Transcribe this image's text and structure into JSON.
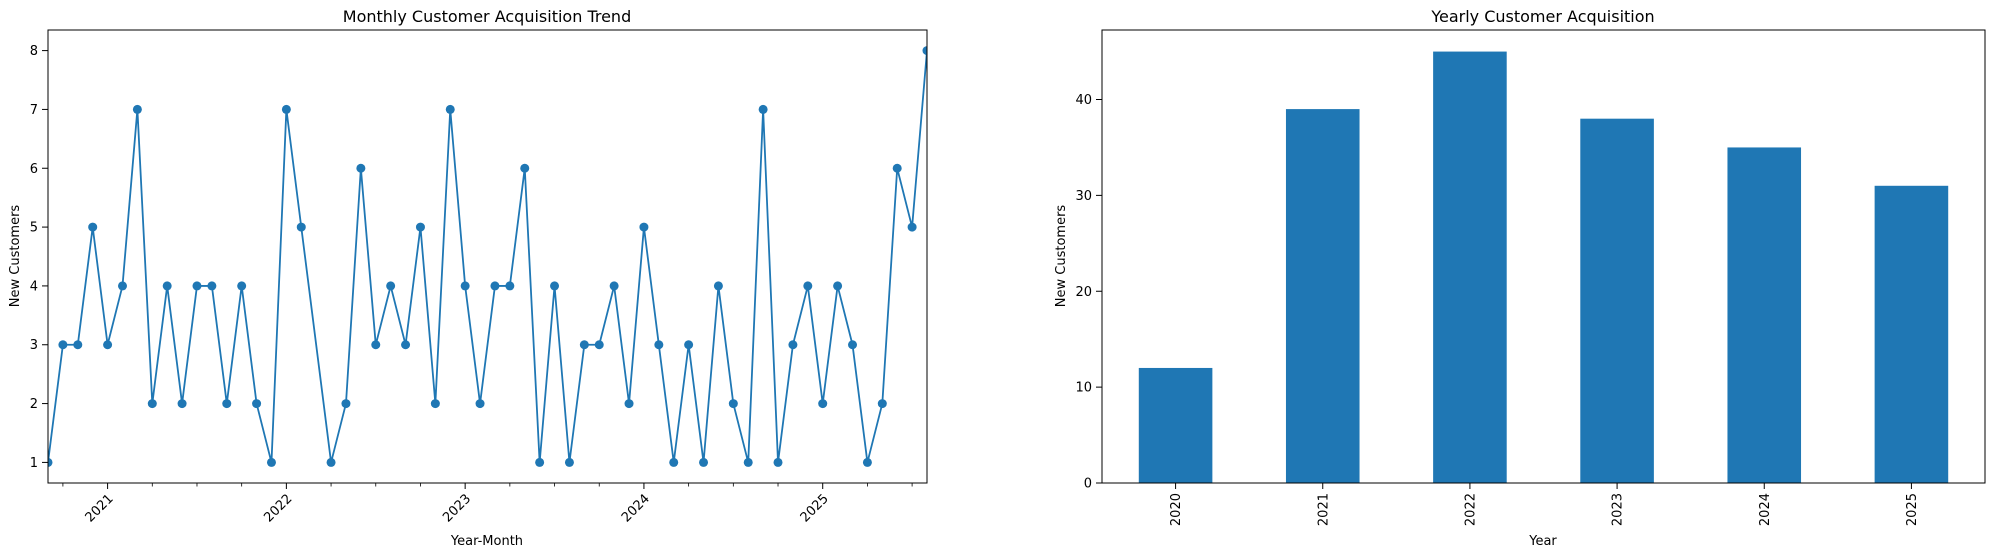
{
  "chart_data": [
    {
      "type": "line",
      "title": "Monthly Customer Acquisition Trend",
      "xlabel": "Year-Month",
      "ylabel": "New Customers",
      "x": [
        "2020-09",
        "2020-10",
        "2020-11",
        "2020-12",
        "2021-01",
        "2021-02",
        "2021-03",
        "2021-04",
        "2021-05",
        "2021-06",
        "2021-07",
        "2021-08",
        "2021-09",
        "2021-10",
        "2021-11",
        "2021-12",
        "2022-01",
        "2022-02",
        "2022-04",
        "2022-05",
        "2022-06",
        "2022-07",
        "2022-08",
        "2022-09",
        "2022-10",
        "2022-11",
        "2022-12",
        "2023-01",
        "2023-02",
        "2023-03",
        "2023-04",
        "2023-05",
        "2023-06",
        "2023-07",
        "2023-08",
        "2023-09",
        "2023-10",
        "2023-11",
        "2023-12",
        "2024-01",
        "2024-02",
        "2024-03",
        "2024-04",
        "2024-05",
        "2024-06",
        "2024-07",
        "2024-08",
        "2024-09",
        "2024-10",
        "2024-11",
        "2024-12",
        "2025-01",
        "2025-02",
        "2025-03",
        "2025-04",
        "2025-05",
        "2025-06",
        "2025-07",
        "2025-08"
      ],
      "y": [
        1,
        3,
        3,
        5,
        3,
        4,
        7,
        2,
        4,
        2,
        4,
        4,
        2,
        4,
        2,
        1,
        7,
        5,
        1,
        2,
        6,
        3,
        4,
        3,
        5,
        2,
        7,
        4,
        2,
        4,
        4,
        6,
        1,
        4,
        1,
        3,
        3,
        4,
        2,
        5,
        3,
        1,
        3,
        1,
        4,
        2,
        1,
        7,
        1,
        3,
        4,
        2,
        4,
        3,
        1,
        2,
        6,
        5,
        8
      ],
      "xlim": [
        "2020-09",
        "2025-08"
      ],
      "ylim": [
        0.65,
        8.35
      ],
      "x_tick_labels": [
        "2021",
        "2022",
        "2023",
        "2024",
        "2025"
      ],
      "y_tick_labels": [
        "1",
        "2",
        "3",
        "4",
        "5",
        "6",
        "7",
        "8"
      ],
      "color": "#1f77b4",
      "marker": "circle",
      "grid": false
    },
    {
      "type": "bar",
      "title": "Yearly Customer Acquisition",
      "xlabel": "Year",
      "ylabel": "New Customers",
      "categories": [
        "2020",
        "2021",
        "2022",
        "2023",
        "2024",
        "2025"
      ],
      "values": [
        12,
        39,
        45,
        38,
        35,
        31
      ],
      "ylim": [
        0,
        47.25
      ],
      "y_tick_labels": [
        "0",
        "10",
        "20",
        "30",
        "40"
      ],
      "color": "#1f77b4",
      "grid": false
    }
  ]
}
